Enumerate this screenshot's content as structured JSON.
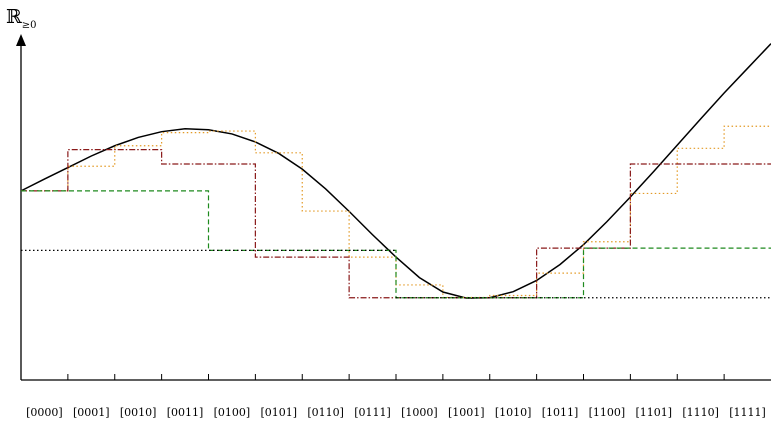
{
  "chart_data": {
    "type": "line",
    "y_axis_label": {
      "main": "ℝ",
      "subscript": "≥0"
    },
    "categories": [
      "[0000]",
      "[0001]",
      "[0010]",
      "[0011]",
      "[0100]",
      "[0101]",
      "[0110]",
      "[0111]",
      "[1000]",
      "[1001]",
      "[1010]",
      "[1011]",
      "[1100]",
      "[1101]",
      "[1110]",
      "[1111]"
    ],
    "x": [
      0,
      0.5,
      1,
      1.5,
      2,
      2.5,
      3,
      3.5,
      4,
      4.5,
      5,
      5.5,
      6,
      6.5,
      7,
      7.5,
      8,
      8.5,
      9,
      9.5,
      10,
      10.5,
      11,
      11.5,
      12,
      12.5,
      13,
      13.5,
      14,
      14.5,
      15,
      15.5,
      16
    ],
    "xlim": [
      0,
      16
    ],
    "ylim": [
      0,
      1
    ],
    "series": [
      {
        "style": "solid",
        "color": "#000000",
        "values": [
          0.591,
          0.628,
          0.664,
          0.7,
          0.732,
          0.758,
          0.776,
          0.785,
          0.782,
          0.769,
          0.744,
          0.708,
          0.659,
          0.597,
          0.527,
          0.454,
          0.384,
          0.32,
          0.275,
          0.256,
          0.257,
          0.276,
          0.311,
          0.361,
          0.423,
          0.495,
          0.572,
          0.652,
          0.734,
          0.816,
          0.897,
          0.974,
          1.051
        ]
      },
      {
        "style": "dotted",
        "color": "#e39a26",
        "step": true,
        "values": [
          0.591,
          0.668,
          0.732,
          0.773,
          0.778,
          0.71,
          0.528,
          0.384,
          0.297,
          0.258,
          0.264,
          0.334,
          0.432,
          0.583,
          0.724,
          0.793
        ]
      },
      {
        "style": "dashdot",
        "color": "#8a1a1a",
        "step": true,
        "values": [
          0.591,
          0.72,
          0.72,
          0.675,
          0.675,
          0.384,
          0.384,
          0.257,
          0.257,
          0.257,
          0.257,
          0.412,
          0.412,
          0.675,
          0.675,
          0.675
        ]
      },
      {
        "style": "dashed",
        "color": "#1e8a1e",
        "step": true,
        "values": [
          0.591,
          0.591,
          0.591,
          0.591,
          0.405,
          0.405,
          0.405,
          0.405,
          0.257,
          0.257,
          0.257,
          0.257,
          0.412,
          0.412,
          0.412,
          0.412
        ]
      },
      {
        "style": "dotted",
        "color": "#000000",
        "reference": true,
        "segments": [
          {
            "x": [
              0,
              8
            ],
            "y": 0.405
          },
          {
            "x": [
              8,
              16
            ],
            "y": 0.257
          }
        ]
      }
    ]
  }
}
